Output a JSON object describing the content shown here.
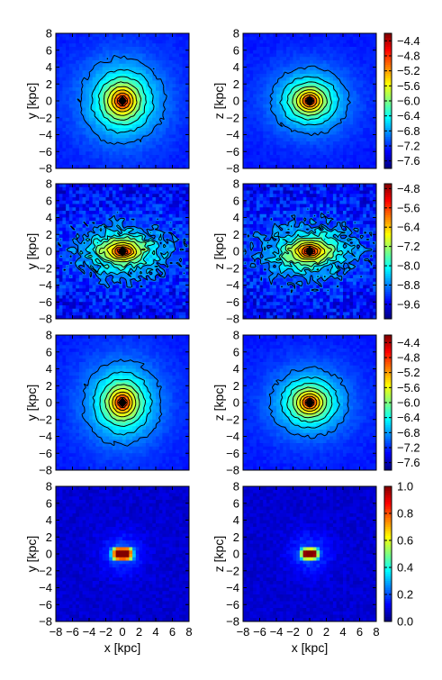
{
  "colors": {
    "frame": "#000000",
    "contour_line": "#000000",
    "background_low": "#0a2fff",
    "peak_high": "#800000"
  },
  "colormap": "jet",
  "chart_data": [
    {
      "type": "heatmap",
      "panel": "row1-left",
      "xlabel": "",
      "ylabel": "y [kpc]",
      "xlim": [
        -8,
        8
      ],
      "ylim": [
        -8,
        8
      ],
      "yticks": [
        -8,
        -6,
        -4,
        -2,
        0,
        2,
        4,
        6,
        8
      ],
      "xticklabels_shown": false,
      "contours": true,
      "num_contour_lines": 9,
      "distribution": {
        "center": [
          0,
          0
        ],
        "shape": "round, nested contours"
      }
    },
    {
      "type": "heatmap",
      "panel": "row1-right",
      "xlabel": "",
      "ylabel": "z [kpc]",
      "xlim": [
        -8,
        8
      ],
      "ylim": [
        -8,
        8
      ],
      "yticks": [
        -8,
        -6,
        -4,
        -2,
        0,
        2,
        4,
        6,
        8
      ],
      "xticklabels_shown": false,
      "contours": true,
      "num_contour_lines": 9,
      "distribution": {
        "center": [
          0,
          0
        ],
        "shape": "slightly elongated along x"
      },
      "colorbar": {
        "ticks": [
          -4.4,
          -4.8,
          -5.2,
          -5.6,
          -6.0,
          -6.4,
          -6.8,
          -7.2,
          -7.6
        ],
        "range": [
          -7.8,
          -4.2
        ]
      }
    },
    {
      "type": "heatmap",
      "panel": "row2-left",
      "xlabel": "",
      "ylabel": "y [kpc]",
      "xlim": [
        -8,
        8
      ],
      "ylim": [
        -8,
        8
      ],
      "yticks": [
        -8,
        -6,
        -4,
        -2,
        0,
        2,
        4,
        6,
        8
      ],
      "xticklabels_shown": false,
      "contours": true,
      "num_contour_lines": 10,
      "distribution": {
        "center": [
          0,
          0
        ],
        "shape": "compact core, noisy outskirts, elongated along x"
      }
    },
    {
      "type": "heatmap",
      "panel": "row2-right",
      "xlabel": "",
      "ylabel": "z [kpc]",
      "xlim": [
        -8,
        8
      ],
      "ylim": [
        -8,
        8
      ],
      "yticks": [
        -8,
        -6,
        -4,
        -2,
        0,
        2,
        4,
        6,
        8
      ],
      "xticklabels_shown": false,
      "contours": true,
      "num_contour_lines": 10,
      "distribution": {
        "center": [
          0,
          0
        ],
        "shape": "compact core, noisy outskirts, elongated along x"
      },
      "colorbar": {
        "ticks": [
          -4.8,
          -5.6,
          -6.4,
          -7.2,
          -8.0,
          -8.8,
          -9.6
        ],
        "range": [
          -10.2,
          -4.6
        ]
      }
    },
    {
      "type": "heatmap",
      "panel": "row3-left",
      "xlabel": "",
      "ylabel": "y [kpc]",
      "xlim": [
        -8,
        8
      ],
      "ylim": [
        -8,
        8
      ],
      "yticks": [
        -8,
        -6,
        -4,
        -2,
        0,
        2,
        4,
        6,
        8
      ],
      "xticklabels_shown": false,
      "contours": true,
      "num_contour_lines": 9,
      "distribution": {
        "center": [
          0,
          0
        ],
        "shape": "round, nested contours"
      }
    },
    {
      "type": "heatmap",
      "panel": "row3-right",
      "xlabel": "",
      "ylabel": "z [kpc]",
      "xlim": [
        -8,
        8
      ],
      "ylim": [
        -8,
        8
      ],
      "yticks": [
        -8,
        -6,
        -4,
        -2,
        0,
        2,
        4,
        6,
        8
      ],
      "xticklabels_shown": false,
      "contours": true,
      "num_contour_lines": 9,
      "distribution": {
        "center": [
          0,
          0
        ],
        "shape": "slightly elongated along x"
      },
      "colorbar": {
        "ticks": [
          -4.4,
          -4.8,
          -5.2,
          -5.6,
          -6.0,
          -6.4,
          -6.8,
          -7.2,
          -7.6
        ],
        "range": [
          -7.8,
          -4.2
        ]
      }
    },
    {
      "type": "heatmap",
      "panel": "row4-left",
      "xlabel": "x [kpc]",
      "ylabel": "y [kpc]",
      "xlim": [
        -8,
        8
      ],
      "ylim": [
        -8,
        8
      ],
      "xticks": [
        -8,
        -6,
        -4,
        -2,
        0,
        2,
        4,
        6,
        8
      ],
      "yticks": [
        -8,
        -6,
        -4,
        -2,
        0,
        2,
        4,
        6,
        8
      ],
      "xticklabels_shown": true,
      "contours": false,
      "distribution": {
        "center": [
          0,
          0
        ],
        "shape": "small elongated hot spot along x",
        "extent_x": [
          -1.5,
          1.5
        ],
        "extent_y": [
          -1,
          1
        ]
      }
    },
    {
      "type": "heatmap",
      "panel": "row4-right",
      "xlabel": "x [kpc]",
      "ylabel": "z [kpc]",
      "xlim": [
        -8,
        8
      ],
      "ylim": [
        -8,
        8
      ],
      "xticks": [
        -8,
        -6,
        -4,
        -2,
        0,
        2,
        4,
        6,
        8
      ],
      "yticks": [
        -8,
        -6,
        -4,
        -2,
        0,
        2,
        4,
        6,
        8
      ],
      "xticklabels_shown": true,
      "contours": false,
      "distribution": {
        "center": [
          0,
          0
        ],
        "shape": "small elongated hot spot along x",
        "extent_x": [
          -1.5,
          1.5
        ],
        "extent_y": [
          -0.8,
          0.8
        ]
      },
      "colorbar": {
        "ticks": [
          1.0,
          0.8,
          0.6,
          0.4,
          0.2,
          0.0
        ],
        "range": [
          0,
          1
        ]
      }
    }
  ]
}
